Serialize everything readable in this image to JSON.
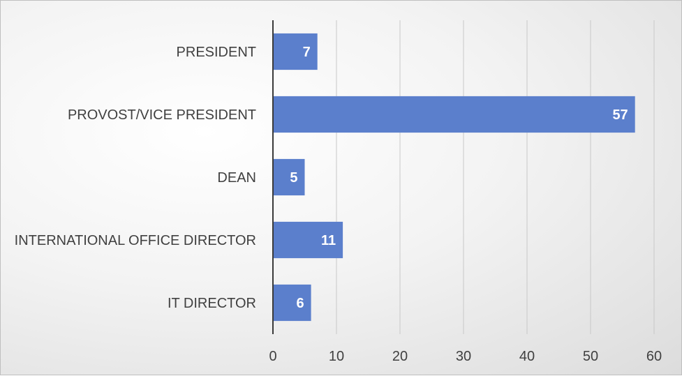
{
  "chart_data": {
    "type": "bar",
    "orientation": "horizontal",
    "categories": [
      "PRESIDENT",
      "PROVOST/VICE PRESIDENT",
      "DEAN",
      "INTERNATIONAL OFFICE DIRECTOR",
      "IT DIRECTOR"
    ],
    "values": [
      7,
      57,
      5,
      11,
      6
    ],
    "data_labels": [
      "7",
      "57",
      "5",
      "11",
      "6"
    ],
    "title": "",
    "xlabel": "",
    "ylabel": "",
    "xlim": [
      0,
      60
    ],
    "x_ticks": [
      0,
      10,
      20,
      30,
      40,
      50,
      60
    ],
    "grid": "vertical",
    "legend": "none",
    "colors": {
      "bar": "#5b7fcc",
      "grid": "#c8c8c8",
      "axis": "#3a3a3a",
      "text": "#404040",
      "data_label": "#ffffff"
    }
  }
}
